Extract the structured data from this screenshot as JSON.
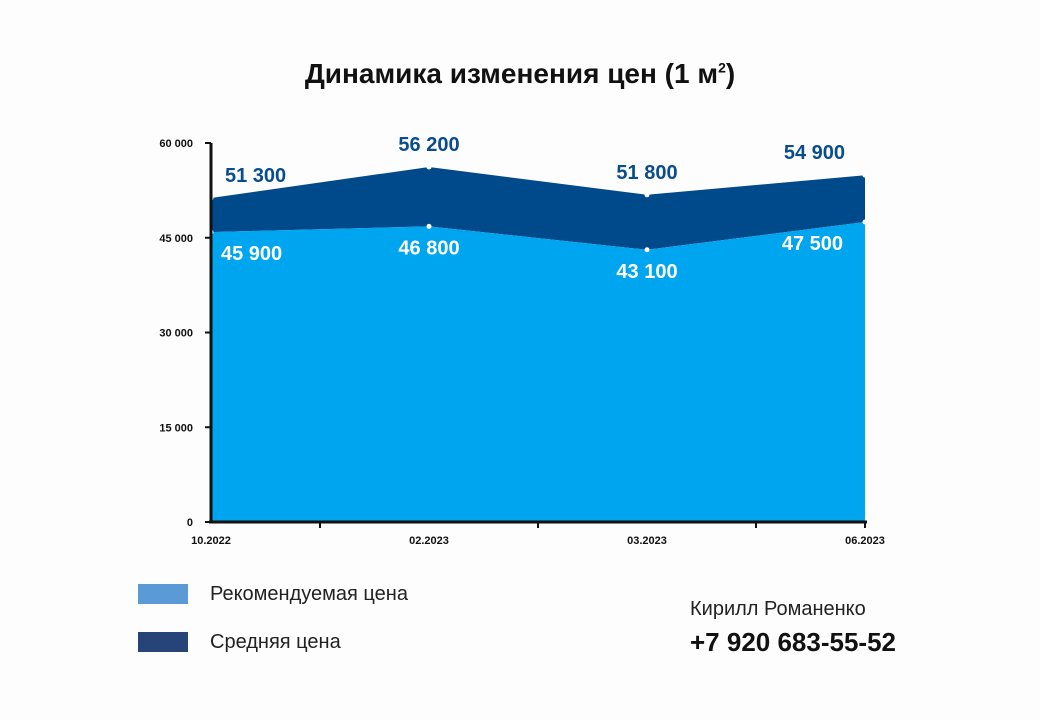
{
  "title": {
    "main": "Динамика изменения цен (1 м",
    "sup": "2",
    "close": ")"
  },
  "chart_data": {
    "type": "area",
    "title": "Динамика изменения цен (1 м²)",
    "categories": [
      "10.2022",
      "02.2023",
      "03.2023",
      "06.2023"
    ],
    "series": [
      {
        "name": "Рекомендуемая цена",
        "values": [
          45900,
          46800,
          43100,
          47500
        ],
        "labels": [
          "45 900",
          "46 800",
          "43 100",
          "47 500"
        ],
        "color": "#00a5f0",
        "label_color": "#ffffff"
      },
      {
        "name": "Средняя цена",
        "values": [
          51300,
          56200,
          51800,
          54900
        ],
        "labels": [
          "51 300",
          "56 200",
          "51 800",
          "54 900"
        ],
        "color": "#004a8b",
        "label_color": "#0a4d8c"
      }
    ],
    "ylim": [
      0,
      60000
    ],
    "yticks": [
      {
        "value": 0,
        "label": "0"
      },
      {
        "value": 15000,
        "label": "15 000"
      },
      {
        "value": 30000,
        "label": "30 000"
      },
      {
        "value": 45000,
        "label": "45 000"
      },
      {
        "value": 60000,
        "label": "60 000"
      }
    ],
    "grid": false,
    "legend_position": "bottom-left"
  },
  "legend": {
    "items": [
      {
        "label": "Рекомендуемая цена",
        "color": "#5b9bd5"
      },
      {
        "label": "Средняя цена",
        "color": "#264478"
      }
    ]
  },
  "contact": {
    "name": "Кирилл Романенко",
    "phone": "+7 920 683-55-52"
  }
}
